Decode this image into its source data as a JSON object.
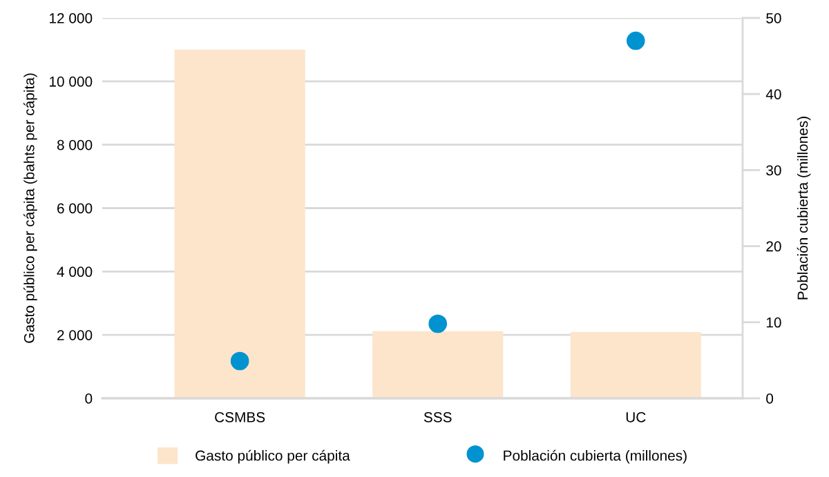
{
  "chart_data": {
    "type": "bar",
    "ylabel": "Gasto público per cápita (bahts per cápita)",
    "y2label": "Población cubierta (millones)",
    "categories": [
      "CSMBS",
      "SSS",
      "UC"
    ],
    "series": [
      {
        "name": "Gasto público per cápita",
        "color": "#fce5cb",
        "values": [
          11000,
          2120,
          2090
        ]
      },
      {
        "name": "Población cubierta (millones)",
        "type": "scatter",
        "axis": "y2",
        "color": "#0093d0",
        "values": [
          4.9,
          9.8,
          47.0
        ]
      }
    ],
    "ylim": [
      0,
      12000
    ],
    "yticks": [
      {
        "value": 0,
        "label": "0"
      },
      {
        "value": 2000,
        "label": "2 000"
      },
      {
        "value": 4000,
        "label": "4 000"
      },
      {
        "value": 6000,
        "label": "6 000"
      },
      {
        "value": 8000,
        "label": "8 000"
      },
      {
        "value": 10000,
        "label": "10 000"
      },
      {
        "value": 12000,
        "label": "12 000"
      }
    ],
    "y2lim": [
      0,
      50
    ],
    "y2ticks": [
      0,
      10,
      20,
      30,
      40,
      50
    ],
    "grid": "y",
    "legend": "bottom",
    "marker": "circle"
  }
}
